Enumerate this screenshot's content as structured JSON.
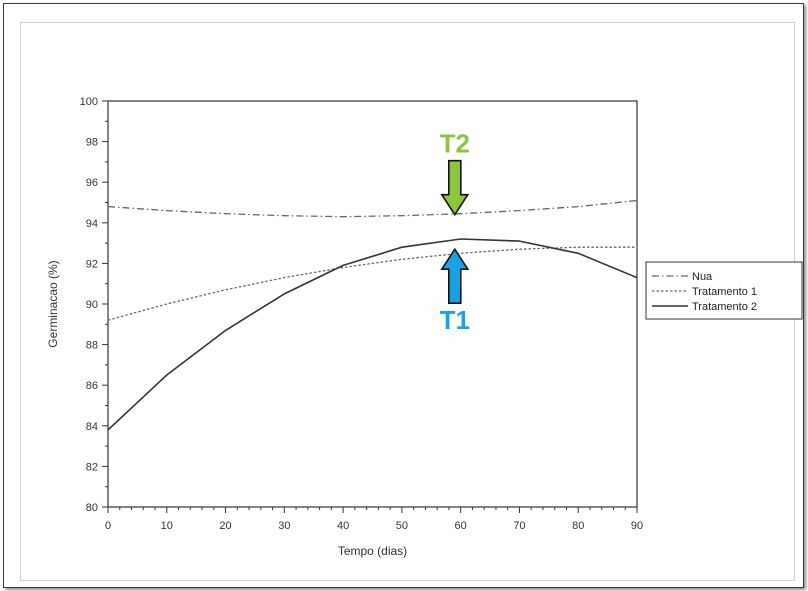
{
  "chart_data": {
    "type": "line",
    "title": "",
    "xlabel": "Tempo (dias)",
    "ylabel": "Germinacao (%)",
    "xlim": [
      0,
      90
    ],
    "ylim": [
      80,
      100
    ],
    "xticks": [
      0,
      10,
      20,
      30,
      40,
      50,
      60,
      70,
      80,
      90
    ],
    "yticks": [
      80,
      82,
      84,
      86,
      88,
      90,
      92,
      94,
      96,
      98,
      100
    ],
    "grid": false,
    "legend_position": "right",
    "series": [
      {
        "name": "Nua",
        "style": "dash-dot",
        "x": [
          0,
          10,
          20,
          30,
          40,
          50,
          60,
          70,
          80,
          90
        ],
        "y": [
          94.8,
          94.6,
          94.45,
          94.35,
          94.3,
          94.35,
          94.45,
          94.6,
          94.8,
          95.1
        ]
      },
      {
        "name": "Tratamento 1",
        "style": "dotted",
        "x": [
          0,
          10,
          20,
          30,
          40,
          50,
          60,
          70,
          80,
          90
        ],
        "y": [
          89.2,
          90.0,
          90.7,
          91.3,
          91.8,
          92.2,
          92.5,
          92.7,
          92.8,
          92.8
        ]
      },
      {
        "name": "Tratamento 2",
        "style": "solid",
        "x": [
          0,
          10,
          20,
          30,
          40,
          50,
          60,
          70,
          80,
          90
        ],
        "y": [
          83.8,
          86.5,
          88.7,
          90.5,
          91.9,
          92.8,
          93.2,
          93.1,
          92.5,
          91.3
        ]
      }
    ],
    "annotations": [
      {
        "label": "T2",
        "color": "#8cc63f",
        "at_x": 59,
        "arrow_tip_y": 94.4,
        "direction": "down"
      },
      {
        "label": "T1",
        "color": "#1ba1e2",
        "at_x": 59,
        "arrow_tip_y": 92.7,
        "direction": "up"
      }
    ]
  }
}
